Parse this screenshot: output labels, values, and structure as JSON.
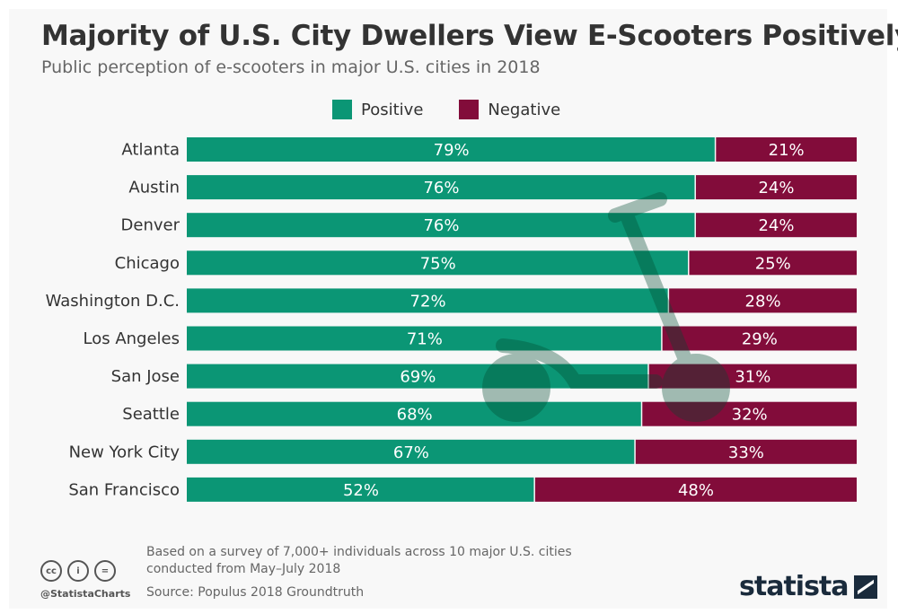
{
  "chart_data": {
    "type": "bar",
    "orientation": "horizontal",
    "stacked": true,
    "title": "Majority of U.S. City Dwellers View E-Scooters Positively",
    "subtitle": "Public perception of e-scooters in major U.S. cities in 2018",
    "categories": [
      "Atlanta",
      "Austin",
      "Denver",
      "Chicago",
      "Washington D.C.",
      "Los Angeles",
      "San Jose",
      "Seattle",
      "New York City",
      "San Francisco"
    ],
    "series": [
      {
        "name": "Positive",
        "color": "#0b9675",
        "values": [
          79,
          76,
          76,
          75,
          72,
          71,
          69,
          68,
          67,
          52
        ]
      },
      {
        "name": "Negative",
        "color": "#820c3a",
        "values": [
          21,
          24,
          24,
          25,
          28,
          29,
          31,
          32,
          33,
          48
        ]
      }
    ],
    "value_suffix": "%",
    "xlim": [
      0,
      100
    ],
    "grid": false,
    "legend_position": "top"
  },
  "footer": {
    "note_line1": "Based on a survey of 7,000+ individuals across 10 major U.S. cities",
    "note_line2": "conducted from May–July 2018",
    "source": "Source: Populus 2018 Groundtruth",
    "handle": "@StatistaCharts",
    "logo": "statista",
    "license_icons": [
      "cc",
      "by",
      "nd"
    ]
  }
}
